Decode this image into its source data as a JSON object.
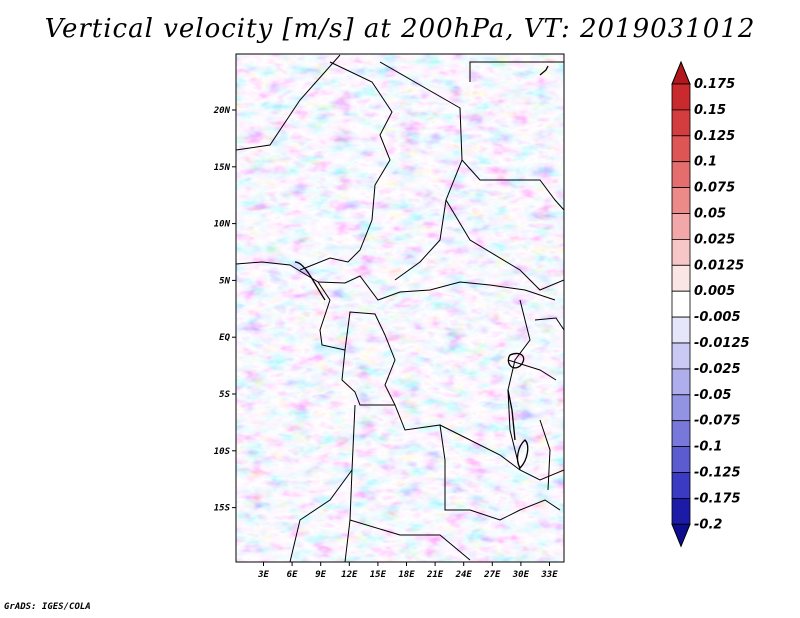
{
  "title": "Vertical velocity [m/s] at 200hPa, VT: 2019031012",
  "credit": "GrADS: IGES/COLA",
  "map": {
    "lon_ticks": [
      "3E",
      "6E",
      "9E",
      "12E",
      "15E",
      "18E",
      "21E",
      "24E",
      "27E",
      "30E",
      "33E"
    ],
    "lat_ticks": [
      "20N",
      "15N",
      "10N",
      "5N",
      "EQ",
      "5S",
      "10S",
      "15S"
    ]
  },
  "colorbar": {
    "labels": [
      "0.175",
      "0.15",
      "0.125",
      "0.1",
      "0.075",
      "0.05",
      "0.025",
      "0.0125",
      "0.005",
      "-0.005",
      "-0.0125",
      "-0.025",
      "-0.05",
      "-0.075",
      "-0.1",
      "-0.125",
      "-0.175",
      "-0.2"
    ],
    "colors": [
      "#b2181b",
      "#c92a2d",
      "#d43d3f",
      "#dd5555",
      "#e46e6e",
      "#ec8a8a",
      "#f2a8a8",
      "#f7c6c6",
      "#fbe6e6",
      "#ffffff",
      "#e6e6fb",
      "#c9c9f3",
      "#aeaeec",
      "#9393e3",
      "#7878da",
      "#5c5cd0",
      "#3a3ac2",
      "#1b1ba8",
      "#0d0d90"
    ]
  }
}
